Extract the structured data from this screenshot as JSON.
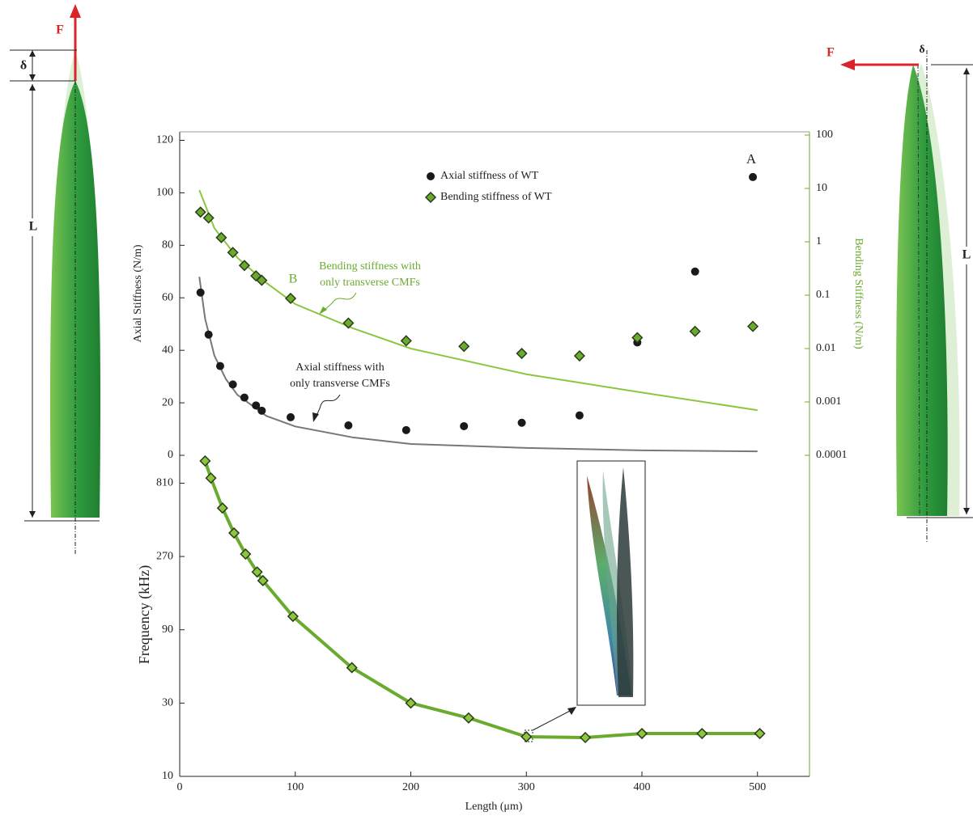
{
  "chart_data": [
    {
      "type": "scatter",
      "y_label": "Axial Stiffness (N/m)",
      "y2_label": "Bending Stiffness (N/m)",
      "xlim": [
        0,
        545
      ],
      "ylim": [
        0,
        122
      ],
      "yticks": [
        0,
        20,
        40,
        60,
        80,
        100,
        120
      ],
      "y2lim": [
        0.0001,
        100
      ],
      "y2_log": true,
      "y2ticks": [
        100,
        10,
        1,
        0.1,
        0.01,
        0.001,
        0.0001
      ],
      "y2_color": "#6aab2e",
      "legend": "top",
      "series": [
        {
          "name": "Axial stiffness of WT",
          "color": "#1a1a1a",
          "marker": "circle",
          "x": [
            18,
            25,
            35,
            46,
            56,
            66,
            71,
            96,
            146,
            196,
            246,
            296,
            346,
            396,
            446,
            496
          ],
          "values": [
            62,
            46,
            34,
            27,
            22,
            19,
            17,
            14.5,
            11.4,
            9.6,
            11.1,
            12.4,
            15.2,
            43,
            70,
            106
          ]
        },
        {
          "name": "Bending stiffness of WT",
          "color": "#6aab2e",
          "marker": "diamond",
          "axis": "y2",
          "x": [
            18,
            25,
            36,
            46,
            56,
            66,
            71,
            96,
            146,
            196,
            246,
            296,
            346,
            396,
            446,
            496
          ],
          "values": [
            3.6,
            2.8,
            1.2,
            0.63,
            0.36,
            0.23,
            0.19,
            0.087,
            0.03,
            0.014,
            0.011,
            0.0081,
            0.0073,
            0.016,
            0.021,
            0.026
          ]
        }
      ],
      "curves": [
        {
          "color": "#8cc63f",
          "axis": "y2",
          "x": [
            17,
            30,
            50,
            75,
            100,
            150,
            200,
            300,
            400,
            500
          ],
          "values": [
            9.3,
            1.8,
            0.5,
            0.17,
            0.068,
            0.024,
            0.01,
            0.0033,
            0.0015,
            0.0007
          ]
        },
        {
          "color": "#777777",
          "x": [
            17,
            22,
            30,
            40,
            50,
            75,
            100,
            150,
            200,
            300,
            400,
            500
          ],
          "values": [
            68,
            52,
            38,
            29,
            23,
            15,
            11,
            6.8,
            4.3,
            2.8,
            1.9,
            1.5
          ]
        }
      ],
      "annotations": {
        "a": "A",
        "b": "B",
        "bending_fit": [
          "Bending stiffness with",
          "only transverse CMFs"
        ],
        "axial_fit": [
          "Axial stiffness with",
          "only transverse CMFs"
        ]
      }
    },
    {
      "type": "line",
      "x_label": "Length (μm)",
      "y_label": "Frequency (kHz)",
      "xlim": [
        0,
        545
      ],
      "xticks": [
        0,
        100,
        200,
        300,
        400,
        500
      ],
      "ylim": [
        10,
        1230
      ],
      "y_log": true,
      "yticks": [
        10,
        30,
        90,
        270,
        810
      ],
      "series": [
        {
          "color": "#6aab2e",
          "marker": "diamond",
          "x": [
            22,
            27,
            37,
            47,
            57,
            67,
            72,
            98,
            149,
            200,
            250,
            300,
            351,
            400,
            452,
            502
          ],
          "values": [
            1130,
            875,
            558,
            384,
            280,
            214,
            188,
            110,
            51,
            30,
            24,
            18.1,
            17.9,
            19,
            19,
            19
          ]
        }
      ]
    }
  ],
  "diagrams": {
    "left": {
      "force": "F",
      "delta": "δ",
      "length": "L"
    },
    "right": {
      "force": "F",
      "delta": "δ",
      "length": "L"
    }
  }
}
